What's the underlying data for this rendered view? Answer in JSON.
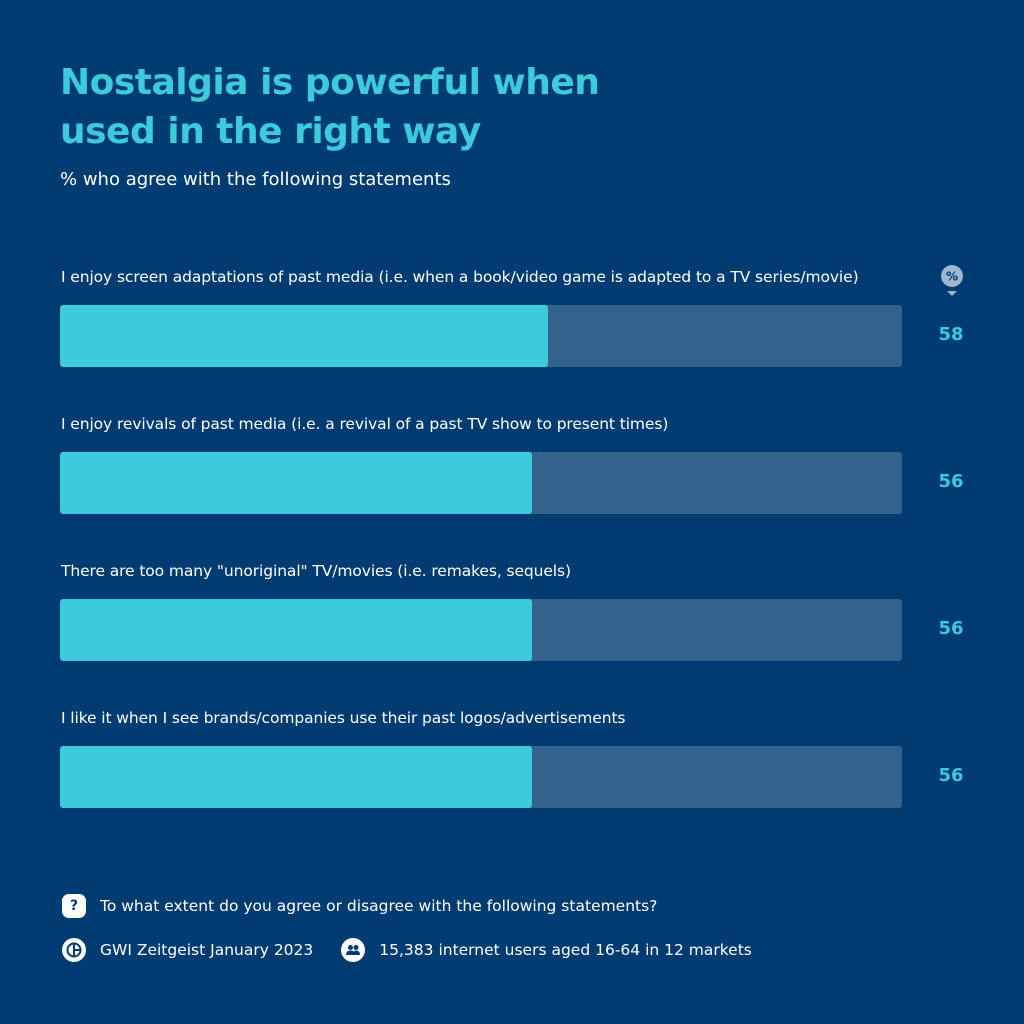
{
  "header": {
    "title": "Nostalgia is powerful when used in the right way",
    "subtitle": "% who agree with the following statements",
    "unit_badge": "%"
  },
  "chart_data": {
    "type": "bar",
    "orientation": "horizontal",
    "categories": [
      "I enjoy screen adaptations of past media (i.e. when a book/video game is adapted to a TV series/movie)",
      "I enjoy revivals of past media (i.e. a revival of a past TV show to present times)",
      "There are too many \"unoriginal\" TV/movies (i.e. remakes, sequels)",
      "I like it when I see brands/companies use their past logos/advertisements"
    ],
    "values": [
      58,
      56,
      56,
      56
    ],
    "value_labels": [
      "58",
      "56",
      "56",
      "56"
    ],
    "xlim": [
      0,
      100
    ],
    "grid": false,
    "legend": "none",
    "colors": {
      "bar": "#3ccbdc",
      "track": "#33628c",
      "background": "#003c71"
    }
  },
  "footer": {
    "question": "To what extent do you agree or disagree with the following statements?",
    "source": "GWI Zeitgeist January 2023",
    "sample": "15,383 internet users aged 16-64 in 12 markets",
    "question_icon": "question-icon",
    "source_icon": "gwi-logo-icon",
    "sample_icon": "users-icon"
  }
}
